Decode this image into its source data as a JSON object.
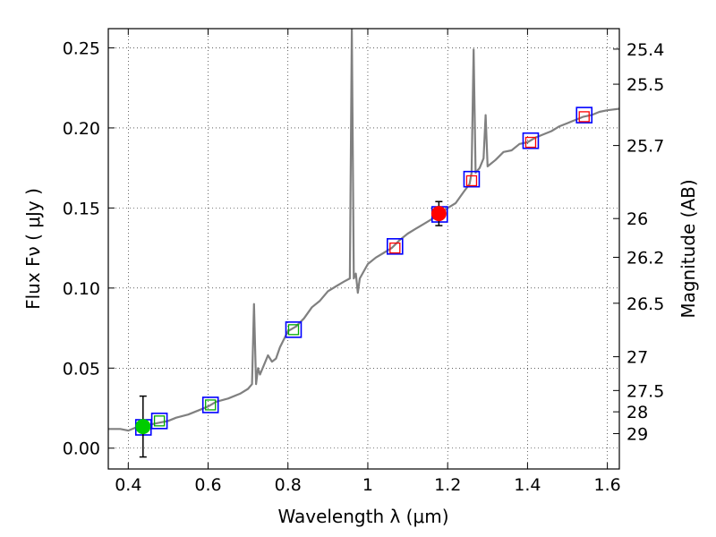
{
  "chart_data": {
    "type": "line",
    "xlabel": "Wavelength  λ (μm)",
    "ylabel": "Flux  Fν ( μJy )",
    "ylabel_right": "Magnitude (AB)",
    "xlim": [
      0.35,
      1.63
    ],
    "ylim": [
      -0.013,
      0.262
    ],
    "grid": true,
    "x_ticks": [
      {
        "value": 0.4,
        "label": "0.4"
      },
      {
        "value": 0.6,
        "label": "0.6"
      },
      {
        "value": 0.8,
        "label": "0.8"
      },
      {
        "value": 1.0,
        "label": "1"
      },
      {
        "value": 1.2,
        "label": "1.2"
      },
      {
        "value": 1.4,
        "label": "1.4"
      },
      {
        "value": 1.6,
        "label": "1.6"
      }
    ],
    "y_ticks": [
      {
        "value": 0.0,
        "label": "0.00"
      },
      {
        "value": 0.05,
        "label": "0.05"
      },
      {
        "value": 0.1,
        "label": "0.10"
      },
      {
        "value": 0.15,
        "label": "0.15"
      },
      {
        "value": 0.2,
        "label": "0.20"
      },
      {
        "value": 0.25,
        "label": "0.25"
      }
    ],
    "right_ticks": [
      {
        "label": "25.4",
        "flux": 0.2492
      },
      {
        "label": "25.5",
        "flux": 0.2273
      },
      {
        "label": "25.7",
        "flux": 0.189
      },
      {
        "label": "26",
        "flux": 0.1434
      },
      {
        "label": "26.2",
        "flux": 0.1192
      },
      {
        "label": "26.5",
        "flux": 0.0905
      },
      {
        "label": "27",
        "flux": 0.0571
      },
      {
        "label": "27.5",
        "flux": 0.036
      },
      {
        "label": "28",
        "flux": 0.0227
      },
      {
        "label": "29",
        "flux": 0.0091
      }
    ],
    "series": [
      {
        "type": "line",
        "color": "#808080",
        "x": [
          0.35,
          0.38,
          0.4,
          0.42,
          0.44,
          0.46,
          0.48,
          0.5,
          0.52,
          0.55,
          0.58,
          0.6,
          0.62,
          0.65,
          0.68,
          0.7,
          0.71,
          0.715,
          0.72,
          0.725,
          0.73,
          0.74,
          0.75,
          0.76,
          0.77,
          0.78,
          0.8,
          0.82,
          0.84,
          0.86,
          0.88,
          0.9,
          0.92,
          0.94,
          0.955,
          0.96,
          0.965,
          0.97,
          0.975,
          0.98,
          1.0,
          1.02,
          1.04,
          1.06,
          1.08,
          1.1,
          1.12,
          1.14,
          1.16,
          1.18,
          1.2,
          1.22,
          1.24,
          1.255,
          1.26,
          1.265,
          1.27,
          1.28,
          1.29,
          1.295,
          1.3,
          1.32,
          1.34,
          1.36,
          1.38,
          1.4,
          1.42,
          1.44,
          1.46,
          1.48,
          1.5,
          1.52,
          1.54,
          1.56,
          1.58,
          1.6,
          1.63
        ],
        "y": [
          0.012,
          0.012,
          0.011,
          0.013,
          0.014,
          0.015,
          0.016,
          0.017,
          0.019,
          0.021,
          0.024,
          0.026,
          0.029,
          0.031,
          0.034,
          0.037,
          0.04,
          0.09,
          0.04,
          0.05,
          0.046,
          0.052,
          0.058,
          0.054,
          0.056,
          0.063,
          0.073,
          0.076,
          0.081,
          0.088,
          0.092,
          0.098,
          0.101,
          0.104,
          0.106,
          0.262,
          0.106,
          0.109,
          0.097,
          0.106,
          0.115,
          0.119,
          0.122,
          0.125,
          0.13,
          0.134,
          0.137,
          0.14,
          0.143,
          0.146,
          0.15,
          0.153,
          0.16,
          0.165,
          0.172,
          0.249,
          0.172,
          0.175,
          0.181,
          0.208,
          0.176,
          0.18,
          0.185,
          0.186,
          0.19,
          0.191,
          0.194,
          0.196,
          0.198,
          0.201,
          0.203,
          0.205,
          0.207,
          0.208,
          0.21,
          0.211,
          0.212
        ]
      }
    ],
    "boxes": [
      {
        "x": 0.438,
        "y": 0.013,
        "color": "#0000ff"
      },
      {
        "x": 0.478,
        "y": 0.017,
        "color": "#0000ff"
      },
      {
        "x": 0.606,
        "y": 0.027,
        "color": "#0000ff"
      },
      {
        "x": 0.814,
        "y": 0.074,
        "color": "#0000ff"
      },
      {
        "x": 1.068,
        "y": 0.126,
        "color": "#0000ff"
      },
      {
        "x": 1.18,
        "y": 0.146,
        "color": "#0000ff"
      },
      {
        "x": 1.26,
        "y": 0.168,
        "color": "#0000ff"
      },
      {
        "x": 1.408,
        "y": 0.192,
        "color": "#0000ff"
      },
      {
        "x": 1.542,
        "y": 0.208,
        "color": "#0000ff"
      }
    ],
    "model_marks": [
      {
        "x": 0.478,
        "y": 0.017,
        "color": "#00aa00"
      },
      {
        "x": 0.606,
        "y": 0.027,
        "color": "#00aa00"
      },
      {
        "x": 0.814,
        "y": 0.074,
        "color": "#00aa00"
      },
      {
        "x": 1.068,
        "y": 0.125,
        "color": "#ff0000"
      },
      {
        "x": 1.26,
        "y": 0.167,
        "color": "#ff0000"
      },
      {
        "x": 1.408,
        "y": 0.191,
        "color": "#ff0000"
      },
      {
        "x": 1.542,
        "y": 0.207,
        "color": "#ff0000"
      }
    ],
    "points": [
      {
        "x": 0.437,
        "y": 0.0135,
        "yerr": 0.019,
        "color": "#00cc00"
      },
      {
        "x": 1.178,
        "y": 0.1465,
        "yerr": 0.0075,
        "color": "#ff0000"
      }
    ]
  }
}
